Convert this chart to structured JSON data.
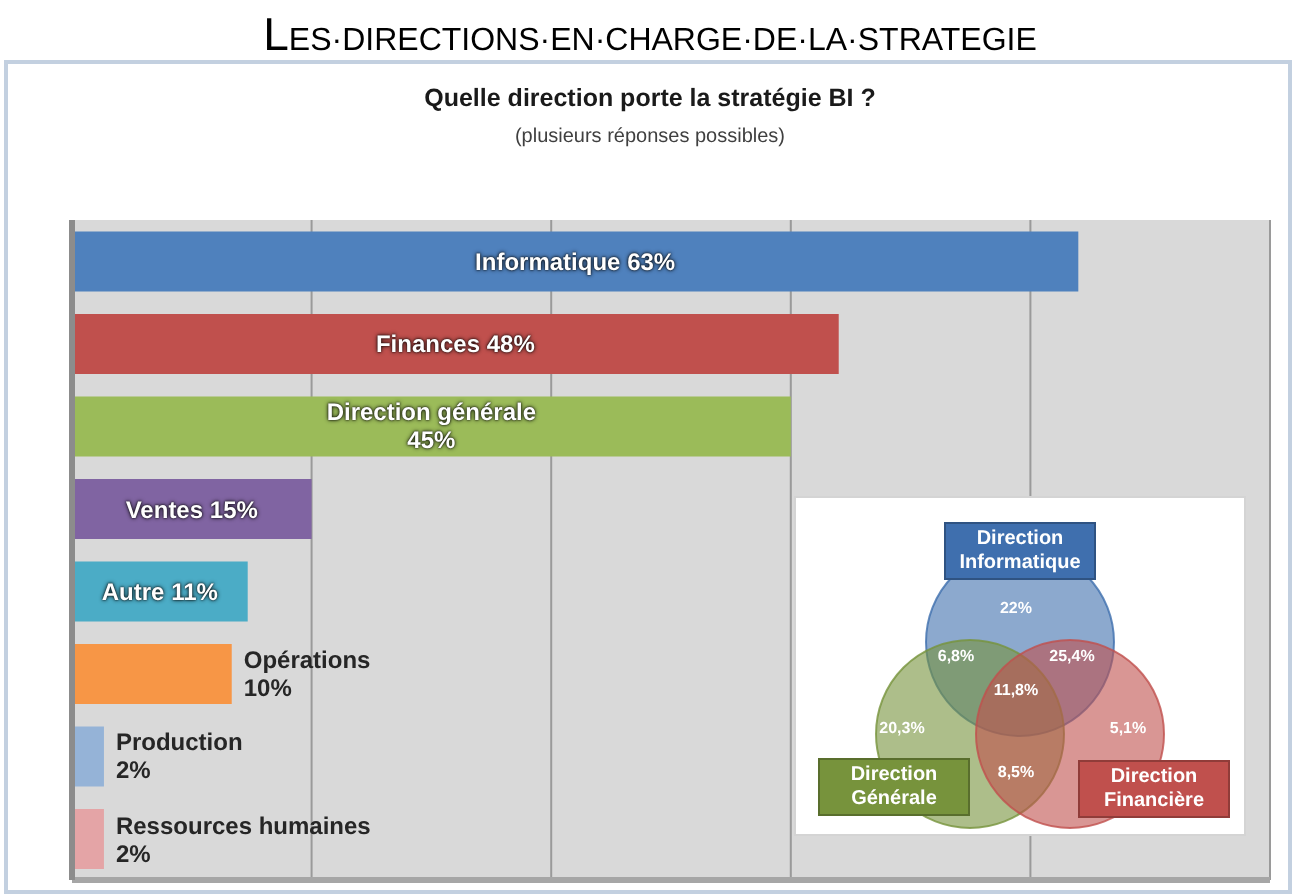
{
  "chart_data": [
    {
      "type": "bar",
      "title": "LES·DIRECTIONS·EN·CHARGE·DE·LA·STRATEGIE",
      "subtitle": "Quelle direction porte la stratégie BI ?",
      "annotations": [
        "(plusieurs réponses possibles)"
      ],
      "orientation": "horizontal",
      "categories": [
        "Informatique",
        "Finances",
        "Direction générale",
        "Ventes",
        "Autre",
        "Opérations",
        "Production",
        "Ressources humaines"
      ],
      "values": [
        63,
        48,
        45,
        15,
        11,
        10,
        2,
        2
      ],
      "colors": [
        "#4f81bd",
        "#c0504d",
        "#9bbb59",
        "#8064a2",
        "#4bacc6",
        "#f79646",
        "#95b3d7",
        "#e4a4a6"
      ],
      "value_labels": [
        "63%",
        "48%",
        "45%",
        "15%",
        "11%",
        "10%",
        "2%",
        "2%"
      ],
      "xlim": [
        0,
        75
      ],
      "xticks": [
        {
          "value": 0,
          "label": null
        },
        {
          "value": 15,
          "label": null
        },
        {
          "value": 30,
          "label": null
        },
        {
          "value": 45,
          "label": null
        },
        {
          "value": 60,
          "label": null
        },
        {
          "value": 75,
          "label": null
        }
      ],
      "grid": "x",
      "tick_labels": false
    },
    {
      "type": "other",
      "categories": [
        "Direction Informatique",
        "Direction Générale",
        "Direction Financière"
      ],
      "colors": [
        "#3f6fae",
        "#77933c",
        "#c0504d"
      ],
      "annotations": [
        "22%",
        "6,8%",
        "25,4%",
        "11,8%",
        "20,3%",
        "5,1%",
        "8,5%"
      ]
    }
  ]
}
